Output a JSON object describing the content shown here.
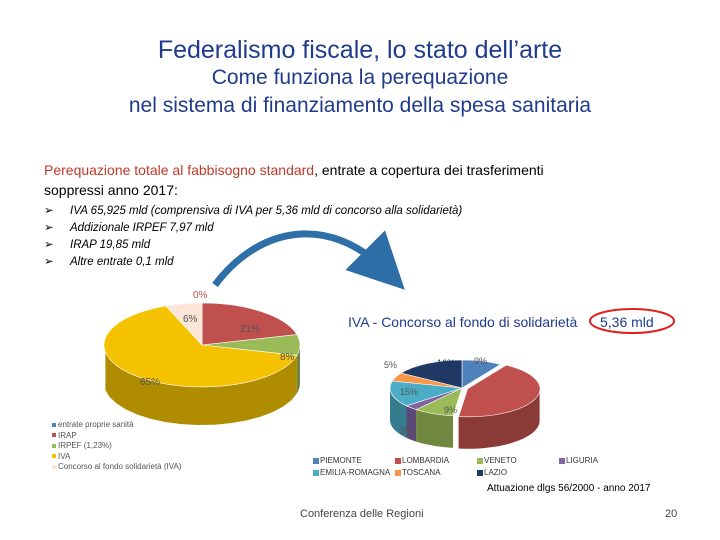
{
  "header": {
    "title": "Federalismo fiscale, lo stato dell’arte",
    "subtitle_line1": "Come funziona la perequazione",
    "subtitle_line2": "nel sistema di finanziamento della spesa sanitaria"
  },
  "intro": {
    "red_part": "Perequazione totale al fabbisogno standard",
    "rest": ", entrate a copertura dei trasferimenti soppressi anno 2017:"
  },
  "bullets": [
    "IVA 65,925 mld (comprensiva di IVA per 5,36 mld di concorso alla solidarietà)",
    "Addizionale IRPEF 7,97 mld",
    "IRAP 19,85 mld",
    "Altre entrate 0,1 mld"
  ],
  "colors": {
    "title": "#1f3b8c",
    "accent_red": "#c0392b",
    "arrow": "#2e6fa8"
  },
  "chart_data": [
    {
      "type": "pie",
      "series": [
        {
          "labels": [
            "entrate proprie sanità",
            "IRAP",
            "IRPEF (1,23%)",
            "IVA",
            "Concorso al fondo solidarietà (IVA)"
          ],
          "values": [
            0,
            21,
            8,
            65,
            6
          ],
          "data_labels": [
            "0%",
            "21%",
            "8%",
            "65%",
            "6%"
          ],
          "colors": [
            "#4f81bd",
            "#c0504d",
            "#9bbb59",
            "#f4c200",
            "#fbe5d6"
          ]
        }
      ],
      "legend_position": "bottom-left"
    },
    {
      "type": "pie",
      "title": "IVA - Concorso al fondo di solidarietà",
      "title_value": "5,36 mld",
      "categories": [
        "PIEMONTE",
        "LOMBARDIA",
        "VENETO",
        "LIGURIA",
        "EMILIA-ROMAGNA",
        "TOSCANA",
        "LAZIO"
      ],
      "values": [
        9,
        43,
        9,
        3,
        15,
        5,
        16
      ],
      "data_labels": [
        "9%",
        "43%",
        "9%",
        "3%",
        "15%",
        "5%",
        "16%"
      ],
      "colors": [
        "#4f81bd",
        "#c0504d",
        "#9bbb59",
        "#8064a2",
        "#4bacc6",
        "#f79646",
        "#1f3864"
      ],
      "legend_position": "bottom"
    }
  ],
  "footer": {
    "source": "Attuazione dlgs 56/2000 - anno 2017",
    "organization": "Conferenza delle Regioni",
    "page_number": "20"
  }
}
